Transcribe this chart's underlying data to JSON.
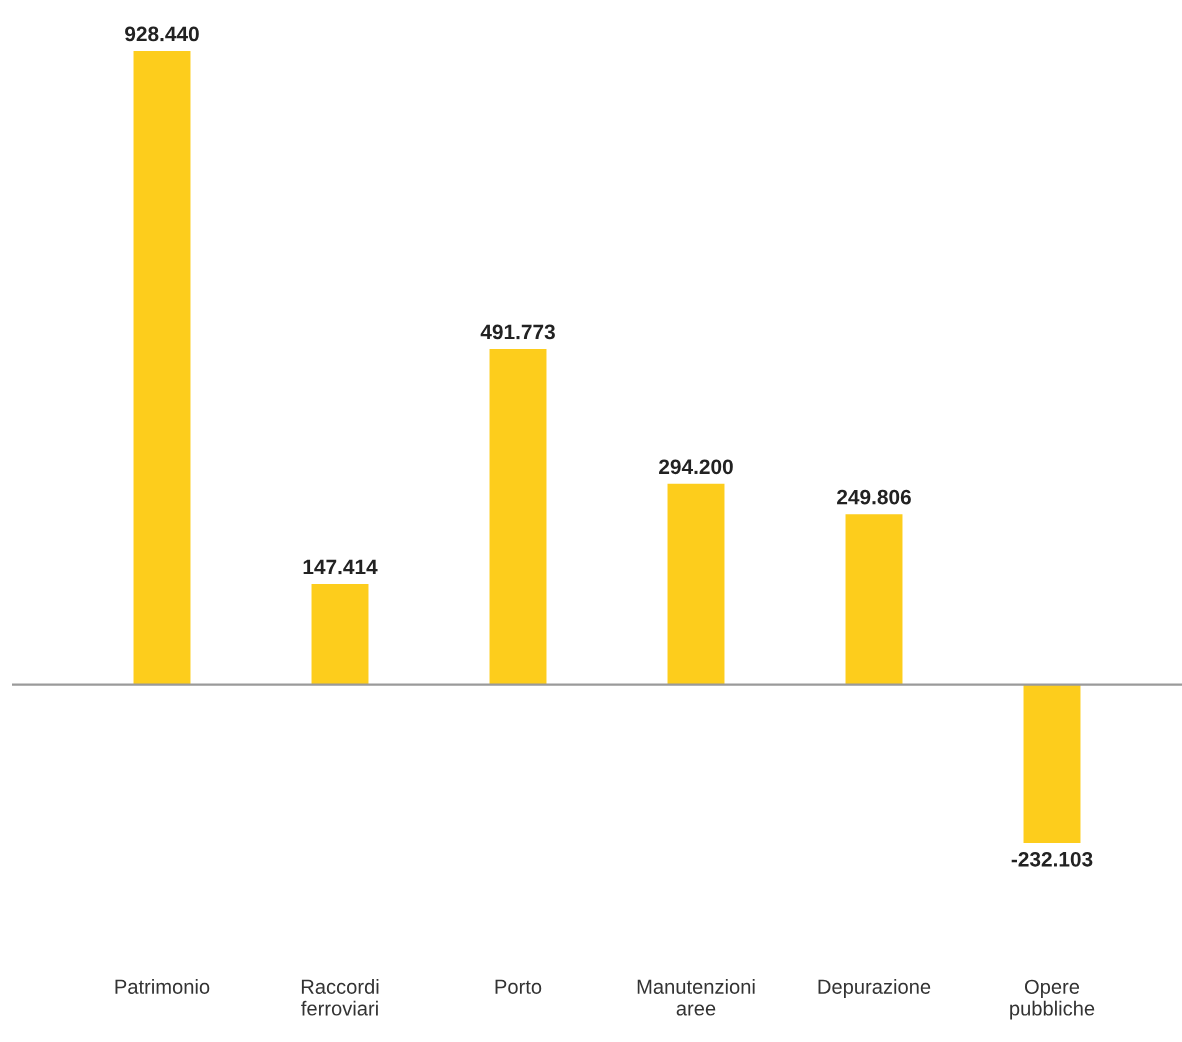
{
  "chart_data": {
    "type": "bar",
    "categories": [
      "Patrimonio",
      "Raccordi ferroviari",
      "Porto",
      "Manutenzioni aree",
      "Depurazione",
      "Opere pubbliche"
    ],
    "values": [
      928440,
      147414,
      491773,
      294200,
      249806,
      -232103
    ],
    "value_labels": [
      "928.440",
      "147.414",
      "491.773",
      "294.200",
      "249.806",
      "-232.103"
    ],
    "color": "#fdcd1c",
    "grid": false,
    "legend": false
  }
}
